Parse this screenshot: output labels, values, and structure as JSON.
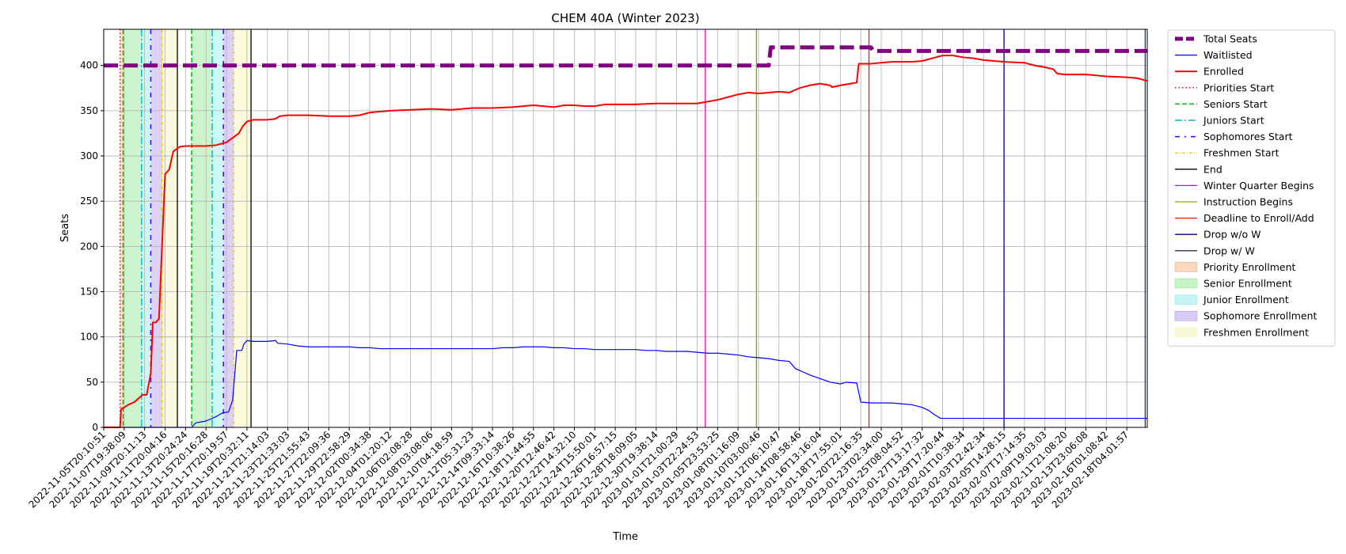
{
  "chart_data": {
    "type": "line",
    "title": "CHEM 40A (Winter 2023)",
    "xlabel": "Time",
    "ylabel": "Seats",
    "ylim": [
      0,
      440
    ],
    "yticks": [
      0,
      50,
      100,
      150,
      200,
      250,
      300,
      350,
      400
    ],
    "grid": true,
    "legend_position": "outside-right",
    "xtick_labels": [
      "2022-11-05T20:10:51",
      "2022-11-07T19:38:09",
      "2022-11-09T20:11:13",
      "2022-11-11T20:04:16",
      "2022-11-13T20:24:24",
      "2022-11-15T20:16:28",
      "2022-11-17T20:19:57",
      "2022-11-19T20:32:11",
      "2022-11-21T21:14:03",
      "2022-11-23T21:33:03",
      "2022-11-25T21:55:43",
      "2022-11-27T22:09:36",
      "2022-11-29T22:58:29",
      "2022-12-02T00:34:38",
      "2022-12-04T01:20:12",
      "2022-12-06T02:08:28",
      "2022-12-08T03:08:06",
      "2022-12-10T04:18:59",
      "2022-12-12T05:31:23",
      "2022-12-14T09:33:14",
      "2022-12-16T10:38:26",
      "2022-12-18T11:44:55",
      "2022-12-20T12:46:42",
      "2022-12-22T14:32:10",
      "2022-12-24T15:50:01",
      "2022-12-26T16:57:15",
      "2022-12-28T18:09:05",
      "2022-12-30T19:38:14",
      "2023-01-01T21:00:29",
      "2023-01-03T22:24:53",
      "2023-01-05T23:53:25",
      "2023-01-08T01:16:09",
      "2023-01-10T03:00:46",
      "2023-01-12T06:10:47",
      "2023-01-14T08:58:46",
      "2023-01-16T13:16:04",
      "2023-01-18T17:55:01",
      "2023-01-20T22:16:35",
      "2023-01-23T02:34:00",
      "2023-01-25T08:04:52",
      "2023-01-27T13:17:32",
      "2023-01-29T17:20:44",
      "2023-02-01T10:38:34",
      "2023-02-03T12:42:34",
      "2023-02-05T14:28:15",
      "2023-02-07T17:14:35",
      "2023-02-09T19:03:03",
      "2023-02-11T21:08:20",
      "2023-02-13T23:06:08",
      "2023-02-16T01:08:42",
      "2023-02-18T04:01:57"
    ],
    "x_range": [
      0,
      51
    ],
    "series": [
      {
        "name": "Total Seats",
        "color": "#800080",
        "style": "dashed-thick",
        "points": [
          [
            0,
            400
          ],
          [
            32.5,
            400
          ],
          [
            32.6,
            420
          ],
          [
            37.5,
            420
          ],
          [
            37.6,
            416
          ],
          [
            51,
            416
          ]
        ]
      },
      {
        "name": "Waitlisted",
        "color": "#0000ff",
        "style": "solid-thin",
        "points": [
          [
            0,
            0
          ],
          [
            4.3,
            0
          ],
          [
            4.5,
            5
          ],
          [
            5.0,
            7
          ],
          [
            5.5,
            12
          ],
          [
            5.8,
            16
          ],
          [
            6.1,
            17
          ],
          [
            6.3,
            30
          ],
          [
            6.5,
            85
          ],
          [
            6.75,
            85
          ],
          [
            6.85,
            92
          ],
          [
            7.0,
            96
          ],
          [
            7.3,
            95
          ],
          [
            8.0,
            95
          ],
          [
            8.4,
            96
          ],
          [
            8.5,
            93
          ],
          [
            9.0,
            92
          ],
          [
            9.5,
            90
          ],
          [
            10.0,
            89
          ],
          [
            10.5,
            89
          ],
          [
            11.0,
            89
          ],
          [
            12.0,
            89
          ],
          [
            12.5,
            88
          ],
          [
            13.0,
            88
          ],
          [
            13.5,
            87
          ],
          [
            14.0,
            87
          ],
          [
            15.0,
            87
          ],
          [
            16.0,
            87
          ],
          [
            17.0,
            87
          ],
          [
            18.0,
            87
          ],
          [
            19.0,
            87
          ],
          [
            19.5,
            88
          ],
          [
            20.0,
            88
          ],
          [
            20.5,
            89
          ],
          [
            21.0,
            89
          ],
          [
            21.5,
            89
          ],
          [
            22.0,
            88
          ],
          [
            22.5,
            88
          ],
          [
            23.0,
            87
          ],
          [
            23.5,
            87
          ],
          [
            24.0,
            86
          ],
          [
            25.0,
            86
          ],
          [
            26.0,
            86
          ],
          [
            26.5,
            85
          ],
          [
            27.0,
            85
          ],
          [
            27.5,
            84
          ],
          [
            28.0,
            84
          ],
          [
            28.5,
            84
          ],
          [
            29.0,
            83
          ],
          [
            29.5,
            82
          ],
          [
            30.0,
            82
          ],
          [
            30.5,
            81
          ],
          [
            31.0,
            80
          ],
          [
            31.5,
            78
          ],
          [
            32.0,
            77
          ],
          [
            32.5,
            76
          ],
          [
            33.0,
            74
          ],
          [
            33.5,
            73
          ],
          [
            33.8,
            65
          ],
          [
            34.0,
            63
          ],
          [
            34.5,
            58
          ],
          [
            35.0,
            54
          ],
          [
            35.5,
            50
          ],
          [
            36.0,
            48
          ],
          [
            36.3,
            50
          ],
          [
            36.8,
            49
          ],
          [
            37.0,
            28
          ],
          [
            37.5,
            27
          ],
          [
            38.0,
            27
          ],
          [
            38.5,
            27
          ],
          [
            39.0,
            26
          ],
          [
            39.5,
            25
          ],
          [
            40.0,
            22
          ],
          [
            40.3,
            19
          ],
          [
            40.6,
            14
          ],
          [
            40.9,
            10
          ],
          [
            51,
            10
          ]
        ]
      },
      {
        "name": "Enrolled",
        "color": "#ff0000",
        "style": "solid-thick",
        "points": [
          [
            0,
            0
          ],
          [
            0.8,
            0
          ],
          [
            0.85,
            20
          ],
          [
            1.0,
            22
          ],
          [
            1.2,
            25
          ],
          [
            1.5,
            28
          ],
          [
            1.7,
            32
          ],
          [
            1.9,
            36
          ],
          [
            2.1,
            36
          ],
          [
            2.3,
            60
          ],
          [
            2.4,
            116
          ],
          [
            2.55,
            116
          ],
          [
            2.7,
            120
          ],
          [
            2.85,
            200
          ],
          [
            3.0,
            280
          ],
          [
            3.2,
            285
          ],
          [
            3.4,
            305
          ],
          [
            3.7,
            310
          ],
          [
            4.0,
            311
          ],
          [
            5.0,
            311
          ],
          [
            5.5,
            312
          ],
          [
            6.0,
            315
          ],
          [
            6.3,
            320
          ],
          [
            6.6,
            325
          ],
          [
            6.8,
            333
          ],
          [
            7.0,
            338
          ],
          [
            7.3,
            340
          ],
          [
            8.0,
            340
          ],
          [
            8.4,
            341
          ],
          [
            8.6,
            344
          ],
          [
            9.0,
            345
          ],
          [
            10.0,
            345
          ],
          [
            11.0,
            344
          ],
          [
            12.0,
            344
          ],
          [
            12.5,
            345
          ],
          [
            13.0,
            348
          ],
          [
            13.5,
            349
          ],
          [
            14.0,
            350
          ],
          [
            15.0,
            351
          ],
          [
            16.0,
            352
          ],
          [
            17.0,
            351
          ],
          [
            17.5,
            352
          ],
          [
            18.0,
            353
          ],
          [
            19.0,
            353
          ],
          [
            20.0,
            354
          ],
          [
            20.5,
            355
          ],
          [
            21.0,
            356
          ],
          [
            21.5,
            355
          ],
          [
            22.0,
            354
          ],
          [
            22.5,
            356
          ],
          [
            23.0,
            356
          ],
          [
            23.5,
            355
          ],
          [
            24.0,
            355
          ],
          [
            24.5,
            357
          ],
          [
            25.0,
            357
          ],
          [
            26.0,
            357
          ],
          [
            27.0,
            358
          ],
          [
            28.0,
            358
          ],
          [
            29.0,
            358
          ],
          [
            29.5,
            360
          ],
          [
            30.0,
            362
          ],
          [
            30.5,
            365
          ],
          [
            31.0,
            368
          ],
          [
            31.5,
            370
          ],
          [
            32.0,
            369
          ],
          [
            32.5,
            370
          ],
          [
            33.0,
            371
          ],
          [
            33.5,
            370
          ],
          [
            34.0,
            375
          ],
          [
            34.5,
            378
          ],
          [
            35.0,
            380
          ],
          [
            35.5,
            378
          ],
          [
            35.6,
            376
          ],
          [
            36.0,
            378
          ],
          [
            36.5,
            380
          ],
          [
            36.8,
            381
          ],
          [
            36.9,
            402
          ],
          [
            37.5,
            402
          ],
          [
            38.0,
            403
          ],
          [
            38.5,
            404
          ],
          [
            39.0,
            404
          ],
          [
            39.5,
            404
          ],
          [
            40.0,
            405
          ],
          [
            40.5,
            408
          ],
          [
            41.0,
            411
          ],
          [
            41.5,
            411
          ],
          [
            42.0,
            409
          ],
          [
            42.5,
            408
          ],
          [
            43.0,
            406
          ],
          [
            44.0,
            404
          ],
          [
            45.0,
            403
          ],
          [
            45.5,
            400
          ],
          [
            46.0,
            398
          ],
          [
            46.4,
            396
          ],
          [
            46.6,
            391
          ],
          [
            47.0,
            390
          ],
          [
            48.0,
            390
          ],
          [
            48.5,
            389
          ],
          [
            49.0,
            388
          ],
          [
            50.0,
            387
          ],
          [
            50.5,
            386
          ],
          [
            51,
            383
          ]
        ]
      }
    ],
    "vertical_markers": [
      {
        "name": "Priorities Start",
        "color": "#ff0000",
        "style": "dotted",
        "x": [
          0.8
        ]
      },
      {
        "name": "Seniors Start",
        "color": "#00bb00",
        "style": "dashed",
        "x": [
          0.95,
          4.3
        ]
      },
      {
        "name": "Juniors Start",
        "color": "#00bfbf",
        "style": "dashdot",
        "x": [
          1.85,
          5.3
        ]
      },
      {
        "name": "Sophomores Start",
        "color": "#4400ff",
        "style": "dashdot-sparse",
        "x": [
          2.3,
          5.85
        ]
      },
      {
        "name": "Freshmen Start",
        "color": "#e6c000",
        "style": "dashdot-fine",
        "x": [
          2.85,
          6.35
        ]
      },
      {
        "name": "End",
        "color": "#000000",
        "style": "solid",
        "x": [
          3.6,
          7.2
        ]
      },
      {
        "name": "Winter Quarter Begins",
        "color": "#ff00aa",
        "style": "solid",
        "x": [
          29.4
        ]
      },
      {
        "name": "Instruction Begins",
        "color": "#88aa00",
        "style": "solid",
        "x": [
          31.9
        ]
      },
      {
        "name": "Deadline to Enroll/Add",
        "color": "#dd2200",
        "style": "solid",
        "x": [
          37.4
        ]
      },
      {
        "name": "Drop w/o W",
        "color": "#000088",
        "style": "solid",
        "x": [
          44.0
        ]
      },
      {
        "name": "Drop w/ W",
        "color": "#223344",
        "style": "solid",
        "x": [
          50.9
        ]
      }
    ],
    "shaded_regions": [
      {
        "name": "Priority Enrollment",
        "color": "#f4b183",
        "spans": [
          [
            0.8,
            0.95
          ]
        ]
      },
      {
        "name": "Senior Enrollment",
        "color": "#90e890",
        "spans": [
          [
            0.95,
            1.85
          ],
          [
            4.3,
            5.3
          ]
        ]
      },
      {
        "name": "Junior Enrollment",
        "color": "#90ecec",
        "spans": [
          [
            1.85,
            2.3
          ],
          [
            5.3,
            5.85
          ]
        ]
      },
      {
        "name": "Sophomore Enrollment",
        "color": "#b49ae8",
        "spans": [
          [
            2.3,
            2.85
          ],
          [
            5.85,
            6.35
          ]
        ]
      },
      {
        "name": "Freshmen Enrollment",
        "color": "#f4f4b4",
        "spans": [
          [
            2.85,
            3.6
          ],
          [
            6.35,
            7.2
          ]
        ]
      }
    ],
    "legend": [
      {
        "label": "Total Seats",
        "kind": "line",
        "color": "#800080",
        "style": "dashed-thick"
      },
      {
        "label": "Waitlisted",
        "kind": "line",
        "color": "#0000ff",
        "style": "solid-thin"
      },
      {
        "label": "Enrolled",
        "kind": "line",
        "color": "#ff0000",
        "style": "solid-thick"
      },
      {
        "label": "Priorities Start",
        "kind": "line",
        "color": "#ff0000",
        "style": "dotted"
      },
      {
        "label": "Seniors Start",
        "kind": "line",
        "color": "#00bb00",
        "style": "dashed"
      },
      {
        "label": "Juniors Start",
        "kind": "line",
        "color": "#00bfbf",
        "style": "dashdot"
      },
      {
        "label": "Sophomores Start",
        "kind": "line",
        "color": "#4400ff",
        "style": "dashdot-sparse"
      },
      {
        "label": "Freshmen Start",
        "kind": "line",
        "color": "#e6c000",
        "style": "dashdot-fine"
      },
      {
        "label": "End",
        "kind": "line",
        "color": "#000000",
        "style": "solid"
      },
      {
        "label": "Winter Quarter Begins",
        "kind": "line",
        "color": "#ff00aa",
        "style": "solid"
      },
      {
        "label": "Instruction Begins",
        "kind": "line",
        "color": "#88aa00",
        "style": "solid"
      },
      {
        "label": "Deadline to Enroll/Add",
        "kind": "line",
        "color": "#dd2200",
        "style": "solid"
      },
      {
        "label": "Drop w/o W",
        "kind": "line",
        "color": "#000088",
        "style": "solid"
      },
      {
        "label": "Drop w/ W",
        "kind": "line",
        "color": "#223344",
        "style": "solid"
      },
      {
        "label": "Priority Enrollment",
        "kind": "patch",
        "color": "#f4b183"
      },
      {
        "label": "Senior Enrollment",
        "kind": "patch",
        "color": "#90e890"
      },
      {
        "label": "Junior Enrollment",
        "kind": "patch",
        "color": "#90ecec"
      },
      {
        "label": "Sophomore Enrollment",
        "kind": "patch",
        "color": "#b49ae8"
      },
      {
        "label": "Freshmen Enrollment",
        "kind": "patch",
        "color": "#f4f4b4"
      }
    ]
  }
}
